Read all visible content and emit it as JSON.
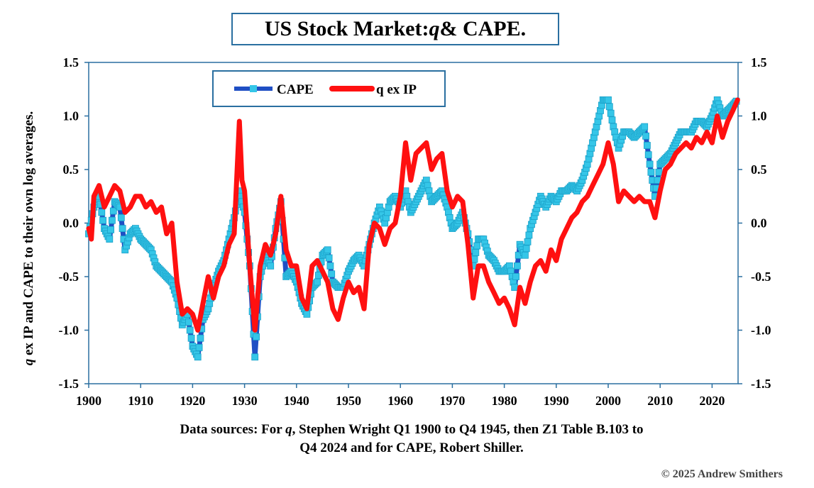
{
  "title": {
    "prefix": "US Stock Market: ",
    "q": "q",
    "suffix": " & CAPE."
  },
  "source_note": {
    "line1_pre": "Data sources: For ",
    "line1_q": "q",
    "line1_post": ", Stephen Wright Q1 1900 to Q4 1945, then Z1 Table B.103 to",
    "line2": "Q4 2024 and for CAPE, Robert Shiller."
  },
  "copyright": "© 2025 Andrew Smithers",
  "colors": {
    "cape": "#1f4fc4",
    "cape_marker": "#35c6e8",
    "q": "#ff1010",
    "border": "#2a6fa0"
  },
  "chart_data": {
    "type": "line",
    "ylabel": {
      "q": "q",
      "rest": " ex IP and CAPE to their own log averages."
    },
    "xlim": [
      1900,
      2025
    ],
    "ylim": [
      -1.5,
      1.5
    ],
    "x_ticks": [
      1900,
      1910,
      1920,
      1930,
      1940,
      1950,
      1960,
      1970,
      1980,
      1990,
      2000,
      2010,
      2020
    ],
    "y_ticks": [
      -1.5,
      -1.0,
      -0.5,
      0.0,
      0.5,
      1.0,
      1.5
    ],
    "y_tick_labels": [
      "-1.5",
      "-1.0",
      "-0.5",
      "0.0",
      "0.5",
      "1.0",
      "1.5"
    ],
    "legend_position": "top-left",
    "series": [
      {
        "name": "CAPE",
        "points": [
          [
            1900,
            -0.1
          ],
          [
            1901,
            0.15
          ],
          [
            1902,
            0.25
          ],
          [
            1903,
            -0.05
          ],
          [
            1904,
            -0.15
          ],
          [
            1905,
            0.2
          ],
          [
            1906,
            0.15
          ],
          [
            1907,
            -0.25
          ],
          [
            1908,
            -0.1
          ],
          [
            1909,
            -0.05
          ],
          [
            1910,
            -0.15
          ],
          [
            1911,
            -0.2
          ],
          [
            1912,
            -0.25
          ],
          [
            1913,
            -0.4
          ],
          [
            1914,
            -0.45
          ],
          [
            1915,
            -0.5
          ],
          [
            1916,
            -0.55
          ],
          [
            1917,
            -0.7
          ],
          [
            1918,
            -0.95
          ],
          [
            1919,
            -0.85
          ],
          [
            1920,
            -1.15
          ],
          [
            1921,
            -1.25
          ],
          [
            1922,
            -0.9
          ],
          [
            1923,
            -0.8
          ],
          [
            1924,
            -0.6
          ],
          [
            1925,
            -0.45
          ],
          [
            1926,
            -0.35
          ],
          [
            1927,
            -0.15
          ],
          [
            1928,
            0.05
          ],
          [
            1929,
            0.3
          ],
          [
            1930,
            0.1
          ],
          [
            1931,
            -0.4
          ],
          [
            1932,
            -1.25
          ],
          [
            1933,
            -0.5
          ],
          [
            1934,
            -0.3
          ],
          [
            1935,
            -0.4
          ],
          [
            1936,
            -0.05
          ],
          [
            1937,
            0.2
          ],
          [
            1938,
            -0.5
          ],
          [
            1939,
            -0.45
          ],
          [
            1940,
            -0.55
          ],
          [
            1941,
            -0.75
          ],
          [
            1942,
            -0.85
          ],
          [
            1943,
            -0.6
          ],
          [
            1944,
            -0.55
          ],
          [
            1945,
            -0.3
          ],
          [
            1946,
            -0.25
          ],
          [
            1947,
            -0.55
          ],
          [
            1948,
            -0.6
          ],
          [
            1949,
            -0.6
          ],
          [
            1950,
            -0.45
          ],
          [
            1951,
            -0.35
          ],
          [
            1952,
            -0.3
          ],
          [
            1953,
            -0.4
          ],
          [
            1954,
            -0.2
          ],
          [
            1955,
            0.0
          ],
          [
            1956,
            0.15
          ],
          [
            1957,
            0.0
          ],
          [
            1958,
            0.2
          ],
          [
            1959,
            0.25
          ],
          [
            1960,
            0.15
          ],
          [
            1961,
            0.3
          ],
          [
            1962,
            0.1
          ],
          [
            1963,
            0.2
          ],
          [
            1964,
            0.3
          ],
          [
            1965,
            0.4
          ],
          [
            1966,
            0.2
          ],
          [
            1967,
            0.25
          ],
          [
            1968,
            0.3
          ],
          [
            1969,
            0.15
          ],
          [
            1970,
            -0.05
          ],
          [
            1971,
            0.0
          ],
          [
            1972,
            0.1
          ],
          [
            1973,
            -0.1
          ],
          [
            1974,
            -0.4
          ],
          [
            1975,
            -0.15
          ],
          [
            1976,
            -0.15
          ],
          [
            1977,
            -0.3
          ],
          [
            1978,
            -0.35
          ],
          [
            1979,
            -0.45
          ],
          [
            1980,
            -0.45
          ],
          [
            1981,
            -0.4
          ],
          [
            1982,
            -0.6
          ],
          [
            1983,
            -0.2
          ],
          [
            1984,
            -0.3
          ],
          [
            1985,
            -0.05
          ],
          [
            1986,
            0.1
          ],
          [
            1987,
            0.25
          ],
          [
            1988,
            0.15
          ],
          [
            1989,
            0.25
          ],
          [
            1990,
            0.2
          ],
          [
            1991,
            0.3
          ],
          [
            1992,
            0.3
          ],
          [
            1993,
            0.35
          ],
          [
            1994,
            0.3
          ],
          [
            1995,
            0.4
          ],
          [
            1996,
            0.55
          ],
          [
            1997,
            0.75
          ],
          [
            1998,
            0.95
          ],
          [
            1999,
            1.15
          ],
          [
            2000,
            1.15
          ],
          [
            2001,
            0.9
          ],
          [
            2002,
            0.7
          ],
          [
            2003,
            0.85
          ],
          [
            2004,
            0.85
          ],
          [
            2005,
            0.8
          ],
          [
            2006,
            0.85
          ],
          [
            2007,
            0.9
          ],
          [
            2008,
            0.55
          ],
          [
            2009,
            0.25
          ],
          [
            2010,
            0.55
          ],
          [
            2011,
            0.6
          ],
          [
            2012,
            0.65
          ],
          [
            2013,
            0.75
          ],
          [
            2014,
            0.85
          ],
          [
            2015,
            0.85
          ],
          [
            2016,
            0.85
          ],
          [
            2017,
            0.95
          ],
          [
            2018,
            0.95
          ],
          [
            2019,
            0.9
          ],
          [
            2020,
            1.0
          ],
          [
            2021,
            1.15
          ],
          [
            2022,
            1.0
          ],
          [
            2023,
            1.05
          ],
          [
            2024,
            1.1
          ],
          [
            2024.9,
            1.15
          ]
        ]
      },
      {
        "name": "q ex IP",
        "points": [
          [
            1900,
            -0.05
          ],
          [
            1900.5,
            -0.15
          ],
          [
            1901,
            0.25
          ],
          [
            1902,
            0.35
          ],
          [
            1903,
            0.15
          ],
          [
            1904,
            0.25
          ],
          [
            1905,
            0.35
          ],
          [
            1906,
            0.3
          ],
          [
            1907,
            0.1
          ],
          [
            1908,
            0.15
          ],
          [
            1909,
            0.25
          ],
          [
            1910,
            0.25
          ],
          [
            1911,
            0.15
          ],
          [
            1912,
            0.2
          ],
          [
            1913,
            0.1
          ],
          [
            1914,
            0.15
          ],
          [
            1915,
            -0.1
          ],
          [
            1916,
            0.0
          ],
          [
            1917,
            -0.55
          ],
          [
            1918,
            -0.85
          ],
          [
            1919,
            -0.8
          ],
          [
            1920,
            -0.85
          ],
          [
            1921,
            -1.0
          ],
          [
            1922,
            -0.75
          ],
          [
            1923,
            -0.5
          ],
          [
            1924,
            -0.7
          ],
          [
            1925,
            -0.5
          ],
          [
            1926,
            -0.4
          ],
          [
            1927,
            -0.2
          ],
          [
            1928,
            -0.1
          ],
          [
            1929,
            0.95
          ],
          [
            1929.5,
            0.4
          ],
          [
            1930,
            0.3
          ],
          [
            1931,
            -0.4
          ],
          [
            1932,
            -1.0
          ],
          [
            1933,
            -0.4
          ],
          [
            1934,
            -0.2
          ],
          [
            1935,
            -0.3
          ],
          [
            1936,
            -0.1
          ],
          [
            1937,
            0.25
          ],
          [
            1938,
            -0.25
          ],
          [
            1939,
            -0.4
          ],
          [
            1940,
            -0.4
          ],
          [
            1941,
            -0.7
          ],
          [
            1942,
            -0.8
          ],
          [
            1943,
            -0.4
          ],
          [
            1944,
            -0.35
          ],
          [
            1945,
            -0.45
          ],
          [
            1946,
            -0.55
          ],
          [
            1947,
            -0.8
          ],
          [
            1948,
            -0.9
          ],
          [
            1949,
            -0.7
          ],
          [
            1950,
            -0.55
          ],
          [
            1951,
            -0.65
          ],
          [
            1952,
            -0.6
          ],
          [
            1953,
            -0.8
          ],
          [
            1954,
            -0.2
          ],
          [
            1955,
            0.0
          ],
          [
            1956,
            -0.05
          ],
          [
            1957,
            -0.2
          ],
          [
            1958,
            -0.05
          ],
          [
            1959,
            0.0
          ],
          [
            1960,
            0.25
          ],
          [
            1961,
            0.75
          ],
          [
            1962,
            0.4
          ],
          [
            1963,
            0.65
          ],
          [
            1964,
            0.7
          ],
          [
            1965,
            0.75
          ],
          [
            1966,
            0.5
          ],
          [
            1967,
            0.6
          ],
          [
            1968,
            0.65
          ],
          [
            1969,
            0.3
          ],
          [
            1970,
            0.15
          ],
          [
            1971,
            0.25
          ],
          [
            1972,
            0.2
          ],
          [
            1973,
            -0.2
          ],
          [
            1974,
            -0.7
          ],
          [
            1975,
            -0.4
          ],
          [
            1976,
            -0.4
          ],
          [
            1977,
            -0.55
          ],
          [
            1978,
            -0.65
          ],
          [
            1979,
            -0.75
          ],
          [
            1980,
            -0.7
          ],
          [
            1981,
            -0.8
          ],
          [
            1982,
            -0.95
          ],
          [
            1983,
            -0.6
          ],
          [
            1984,
            -0.75
          ],
          [
            1985,
            -0.55
          ],
          [
            1986,
            -0.4
          ],
          [
            1987,
            -0.35
          ],
          [
            1988,
            -0.45
          ],
          [
            1989,
            -0.25
          ],
          [
            1990,
            -0.35
          ],
          [
            1991,
            -0.15
          ],
          [
            1992,
            -0.05
          ],
          [
            1993,
            0.05
          ],
          [
            1994,
            0.1
          ],
          [
            1995,
            0.2
          ],
          [
            1996,
            0.25
          ],
          [
            1997,
            0.35
          ],
          [
            1998,
            0.45
          ],
          [
            1999,
            0.55
          ],
          [
            2000,
            0.75
          ],
          [
            2001,
            0.55
          ],
          [
            2002,
            0.2
          ],
          [
            2003,
            0.3
          ],
          [
            2004,
            0.25
          ],
          [
            2005,
            0.2
          ],
          [
            2006,
            0.25
          ],
          [
            2007,
            0.2
          ],
          [
            2008,
            0.2
          ],
          [
            2009,
            0.05
          ],
          [
            2010,
            0.3
          ],
          [
            2011,
            0.5
          ],
          [
            2012,
            0.55
          ],
          [
            2013,
            0.65
          ],
          [
            2014,
            0.7
          ],
          [
            2015,
            0.75
          ],
          [
            2016,
            0.7
          ],
          [
            2017,
            0.8
          ],
          [
            2018,
            0.75
          ],
          [
            2019,
            0.85
          ],
          [
            2020,
            0.75
          ],
          [
            2021,
            1.0
          ],
          [
            2022,
            0.8
          ],
          [
            2023,
            0.95
          ],
          [
            2024,
            1.05
          ],
          [
            2024.9,
            1.15
          ]
        ]
      }
    ]
  }
}
